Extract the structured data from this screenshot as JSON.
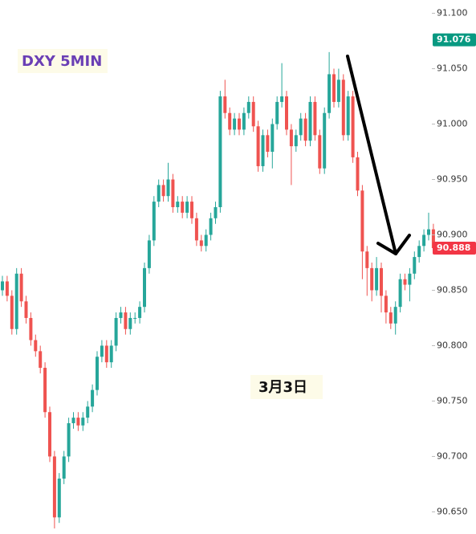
{
  "chart_data": {
    "type": "candlestick",
    "title": "DXY 5MIN",
    "annotation": "3月3日",
    "up_color": "#26a69a",
    "down_color": "#ef5350",
    "ylim": [
      90.63,
      91.112
    ],
    "yticks": [
      {
        "value": 90.65,
        "label": "90.650"
      },
      {
        "value": 90.7,
        "label": "90.700"
      },
      {
        "value": 90.75,
        "label": "90.750"
      },
      {
        "value": 90.8,
        "label": "90.800"
      },
      {
        "value": 90.85,
        "label": "90.850"
      },
      {
        "value": 90.9,
        "label": "90.900"
      },
      {
        "value": 90.95,
        "label": "90.950"
      },
      {
        "value": 91,
        "label": "91.000"
      },
      {
        "value": 91.05,
        "label": "91.050"
      },
      {
        "value": 91.1,
        "label": "91.100"
      }
    ],
    "price_labels": [
      {
        "value": 91.076,
        "color": "#089981"
      },
      {
        "value": 90.888,
        "color": "#f23645"
      }
    ],
    "open": [
      90.85,
      90.858,
      90.845,
      90.815,
      90.865,
      90.84,
      90.825,
      90.805,
      90.795,
      90.78,
      90.74,
      90.7,
      90.645,
      90.68,
      90.7,
      90.73,
      90.735,
      90.728,
      90.735,
      90.745,
      90.76,
      90.79,
      90.8,
      90.785,
      90.8,
      90.825,
      90.83,
      90.815,
      90.825,
      90.825,
      90.835,
      90.87,
      90.895,
      90.93,
      90.945,
      90.935,
      90.95,
      90.925,
      90.93,
      90.92,
      90.93,
      90.915,
      90.895,
      90.89,
      90.9,
      90.915,
      90.925,
      91.025,
      91.01,
      90.995,
      91.005,
      90.995,
      91.01,
      91.02,
      90.998,
      90.962,
      90.99,
      90.975,
      91.0,
      91.02,
      91.025,
      90.995,
      90.98,
      90.99,
      91.005,
      90.985,
      91.02,
      90.99,
      90.96,
      91.01,
      91.045,
      91.02,
      91.04,
      90.99,
      91.025,
      90.97,
      90.94,
      90.885,
      90.87,
      90.85,
      90.87,
      90.845,
      90.83,
      90.82,
      90.835,
      90.86,
      90.855,
      90.865,
      90.88,
      90.89,
      90.9,
      90.905
    ],
    "high": [
      90.863,
      90.863,
      90.85,
      90.87,
      90.87,
      90.845,
      90.83,
      90.81,
      90.8,
      90.785,
      90.745,
      90.705,
      90.685,
      90.705,
      90.735,
      90.74,
      90.74,
      90.74,
      90.75,
      90.765,
      90.795,
      90.805,
      90.805,
      90.805,
      90.83,
      90.835,
      90.835,
      90.83,
      90.83,
      90.84,
      90.875,
      90.9,
      90.935,
      90.95,
      90.95,
      90.965,
      90.955,
      90.935,
      90.935,
      90.935,
      90.935,
      90.92,
      90.9,
      90.905,
      90.92,
      90.93,
      91.03,
      91.04,
      91.015,
      91.01,
      91.01,
      91.015,
      91.025,
      91.025,
      91.003,
      90.995,
      90.995,
      91.005,
      91.025,
      91.055,
      91.03,
      91.0,
      90.995,
      91.01,
      91.01,
      91.025,
      91.025,
      90.995,
      91.015,
      91.065,
      91.05,
      91.05,
      91.045,
      91.03,
      91.03,
      90.975,
      90.945,
      90.89,
      90.875,
      90.88,
      90.875,
      90.85,
      90.835,
      90.84,
      90.865,
      90.865,
      90.87,
      90.885,
      90.895,
      90.905,
      90.92,
      90.91
    ],
    "low": [
      90.845,
      90.84,
      90.81,
      90.81,
      90.835,
      90.82,
      90.8,
      90.79,
      90.775,
      90.735,
      90.695,
      90.635,
      90.64,
      90.675,
      90.695,
      90.725,
      90.723,
      90.723,
      90.73,
      90.74,
      90.755,
      90.785,
      90.78,
      90.78,
      90.795,
      90.82,
      90.81,
      90.81,
      90.82,
      90.82,
      90.83,
      90.865,
      90.89,
      90.925,
      90.93,
      90.93,
      90.92,
      90.92,
      90.915,
      90.915,
      90.91,
      90.89,
      90.885,
      90.885,
      90.895,
      90.91,
      90.92,
      91.005,
      90.99,
      90.99,
      90.99,
      90.99,
      91.005,
      90.993,
      90.957,
      90.957,
      90.97,
      90.96,
      90.995,
      91.015,
      90.99,
      90.945,
      90.975,
      90.985,
      90.98,
      90.98,
      90.985,
      90.955,
      90.955,
      91.005,
      91.015,
      91.015,
      90.985,
      90.985,
      90.965,
      90.935,
      90.86,
      90.845,
      90.84,
      90.845,
      90.83,
      90.82,
      90.815,
      90.81,
      90.83,
      90.85,
      90.84,
      90.86,
      90.875,
      90.885,
      90.895,
      90.883
    ],
    "close": [
      90.858,
      90.845,
      90.815,
      90.865,
      90.84,
      90.825,
      90.805,
      90.795,
      90.78,
      90.74,
      90.7,
      90.645,
      90.68,
      90.7,
      90.73,
      90.735,
      90.728,
      90.735,
      90.745,
      90.76,
      90.79,
      90.8,
      90.785,
      90.8,
      90.825,
      90.83,
      90.815,
      90.825,
      90.825,
      90.835,
      90.87,
      90.895,
      90.93,
      90.945,
      90.935,
      90.95,
      90.925,
      90.93,
      90.92,
      90.93,
      90.915,
      90.895,
      90.89,
      90.9,
      90.915,
      90.925,
      91.025,
      91.01,
      90.995,
      91.005,
      90.995,
      91.01,
      91.02,
      90.998,
      90.962,
      90.99,
      90.975,
      91.0,
      91.02,
      91.025,
      90.995,
      90.98,
      90.99,
      91.005,
      90.985,
      91.02,
      90.99,
      90.96,
      91.01,
      91.045,
      91.02,
      91.04,
      90.99,
      91.025,
      90.97,
      90.94,
      90.885,
      90.87,
      90.85,
      90.87,
      90.845,
      90.83,
      90.82,
      90.835,
      90.86,
      90.855,
      90.865,
      90.88,
      90.89,
      90.9,
      90.905,
      90.888
    ]
  }
}
